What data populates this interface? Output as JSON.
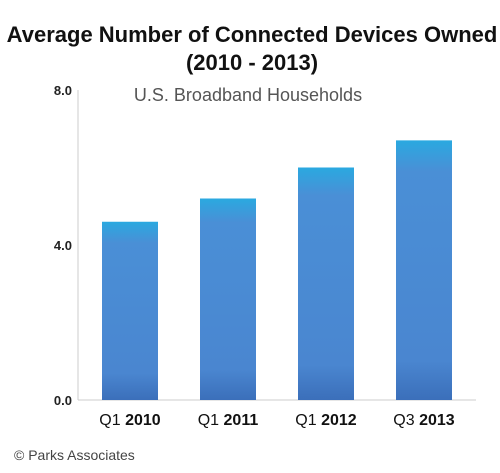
{
  "chart_data": {
    "type": "bar",
    "title_line1": "Average Number of Connected Devices Owned",
    "title_line2": "(2010 - 2013)",
    "subtitle": "U.S. Broadband Households",
    "categories": [
      "Q1 2010",
      "Q1 2011",
      "Q1 2012",
      "Q3 2013"
    ],
    "category_parts": [
      {
        "prefix": "Q1 ",
        "year": "2010"
      },
      {
        "prefix": "Q1 ",
        "year": "2011"
      },
      {
        "prefix": "Q1 ",
        "year": "2012"
      },
      {
        "prefix": "Q3 ",
        "year": "2013"
      }
    ],
    "values": [
      4.6,
      5.2,
      6.0,
      6.7
    ],
    "ylim": [
      0,
      8
    ],
    "yticks": [
      "0.0",
      "4.0",
      "8.0"
    ],
    "ytick_values": [
      0,
      4,
      8
    ],
    "grid": false,
    "colors": {
      "bar_top": "#2aa9e0",
      "bar_bottom": "#3b6fba",
      "axis": "#cccccc"
    }
  },
  "credit": "© Parks Associates"
}
